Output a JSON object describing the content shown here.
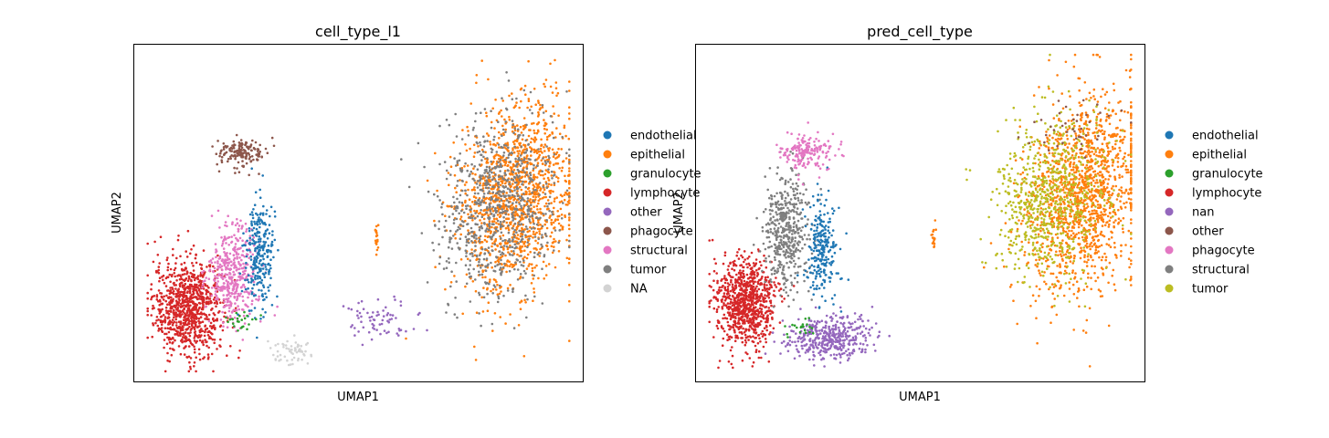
{
  "chart_data": [
    {
      "type": "scatter",
      "title": "cell_type_l1",
      "xlabel": "UMAP1",
      "ylabel": "UMAP2",
      "xticks": [],
      "yticks": [],
      "grid": false,
      "legend_position": "right",
      "legend": [
        {
          "label": "endothelial",
          "color": "#1f77b4"
        },
        {
          "label": "epithelial",
          "color": "#ff7f0e"
        },
        {
          "label": "granulocyte",
          "color": "#2ca02c"
        },
        {
          "label": "lymphocyte",
          "color": "#d62728"
        },
        {
          "label": "other",
          "color": "#9467bd"
        },
        {
          "label": "phagocyte",
          "color": "#8c564b"
        },
        {
          "label": "structural",
          "color": "#e377c2"
        },
        {
          "label": "tumor",
          "color": "#7f7f7f"
        },
        {
          "label": "NA",
          "color": "#d3d3d3"
        }
      ],
      "clusters": [
        {
          "name": "lymphocyte",
          "color": "#d62728",
          "center": [
            0.12,
            0.22
          ],
          "spread": [
            0.07,
            0.13
          ],
          "n": 900
        },
        {
          "name": "structural",
          "color": "#e377c2",
          "center": [
            0.22,
            0.32
          ],
          "spread": [
            0.05,
            0.13
          ],
          "n": 420
        },
        {
          "name": "endothelial",
          "color": "#1f77b4",
          "center": [
            0.28,
            0.38
          ],
          "spread": [
            0.03,
            0.14
          ],
          "n": 260
        },
        {
          "name": "phagocyte",
          "color": "#8c564b",
          "center": [
            0.24,
            0.68
          ],
          "spread": [
            0.05,
            0.04
          ],
          "n": 160
        },
        {
          "name": "granulocyte",
          "color": "#2ca02c",
          "center": [
            0.24,
            0.18
          ],
          "spread": [
            0.03,
            0.03
          ],
          "n": 25
        },
        {
          "name": "NA",
          "color": "#d3d3d3",
          "center": [
            0.35,
            0.09
          ],
          "spread": [
            0.04,
            0.03
          ],
          "n": 60
        },
        {
          "name": "epithelial",
          "color": "#ff7f0e",
          "center": [
            0.82,
            0.55
          ],
          "spread": [
            0.12,
            0.25
          ],
          "n": 1300
        },
        {
          "name": "tumor",
          "color": "#7f7f7f",
          "center": [
            0.78,
            0.52
          ],
          "spread": [
            0.12,
            0.24
          ],
          "n": 800
        },
        {
          "name": "other",
          "color": "#9467bd",
          "center": [
            0.55,
            0.18
          ],
          "spread": [
            0.07,
            0.05
          ],
          "n": 70
        },
        {
          "name": "epithelial",
          "color": "#ff7f0e",
          "center": [
            0.54,
            0.43
          ],
          "spread": [
            0.004,
            0.03
          ],
          "n": 20
        }
      ]
    },
    {
      "type": "scatter",
      "title": "pred_cell_type",
      "xlabel": "UMAP1",
      "ylabel": "UMAP2",
      "xticks": [],
      "yticks": [],
      "grid": false,
      "legend_position": "right",
      "legend": [
        {
          "label": "endothelial",
          "color": "#1f77b4"
        },
        {
          "label": "epithelial",
          "color": "#ff7f0e"
        },
        {
          "label": "granulocyte",
          "color": "#2ca02c"
        },
        {
          "label": "lymphocyte",
          "color": "#d62728"
        },
        {
          "label": "nan",
          "color": "#9467bd"
        },
        {
          "label": "other",
          "color": "#8c564b"
        },
        {
          "label": "phagocyte",
          "color": "#e377c2"
        },
        {
          "label": "structural",
          "color": "#7f7f7f"
        },
        {
          "label": "tumor",
          "color": "#bcbd22"
        }
      ],
      "clusters": [
        {
          "name": "lymphocyte",
          "color": "#d62728",
          "center": [
            0.11,
            0.23
          ],
          "spread": [
            0.06,
            0.12
          ],
          "n": 850
        },
        {
          "name": "structural",
          "color": "#7f7f7f",
          "center": [
            0.2,
            0.45
          ],
          "spread": [
            0.05,
            0.16
          ],
          "n": 450
        },
        {
          "name": "endothelial",
          "color": "#1f77b4",
          "center": [
            0.28,
            0.4
          ],
          "spread": [
            0.03,
            0.13
          ],
          "n": 250
        },
        {
          "name": "phagocyte",
          "color": "#e377c2",
          "center": [
            0.25,
            0.68
          ],
          "spread": [
            0.05,
            0.05
          ],
          "n": 180
        },
        {
          "name": "nan",
          "color": "#9467bd",
          "center": [
            0.3,
            0.13
          ],
          "spread": [
            0.09,
            0.06
          ],
          "n": 420
        },
        {
          "name": "granulocyte",
          "color": "#2ca02c",
          "center": [
            0.24,
            0.16
          ],
          "spread": [
            0.03,
            0.03
          ],
          "n": 20
        },
        {
          "name": "epithelial",
          "color": "#ff7f0e",
          "center": [
            0.83,
            0.56
          ],
          "spread": [
            0.11,
            0.26
          ],
          "n": 1400
        },
        {
          "name": "tumor",
          "color": "#bcbd22",
          "center": [
            0.76,
            0.55
          ],
          "spread": [
            0.11,
            0.22
          ],
          "n": 700
        },
        {
          "name": "other",
          "color": "#8c564b",
          "center": [
            0.8,
            0.75
          ],
          "spread": [
            0.08,
            0.08
          ],
          "n": 40
        },
        {
          "name": "epithelial",
          "color": "#ff7f0e",
          "center": [
            0.53,
            0.43
          ],
          "spread": [
            0.004,
            0.03
          ],
          "n": 20
        }
      ]
    }
  ]
}
